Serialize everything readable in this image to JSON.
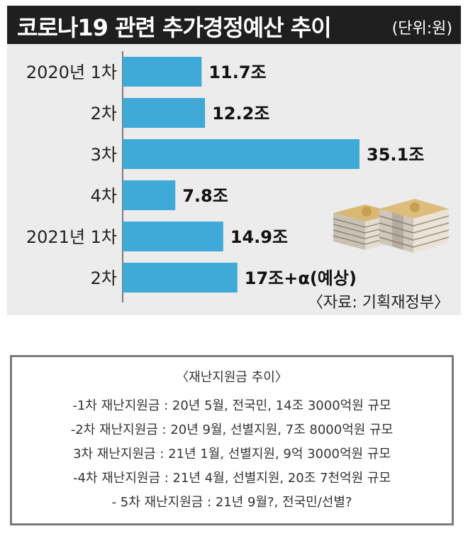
{
  "header": {
    "title": "코로나19 관련 추가경정예산 추이",
    "unit": "(단위:원)"
  },
  "source": "〈자료: 기획재정부〉",
  "colors": {
    "bar": "#3fa9d8",
    "title_bg": "#1f1f1f",
    "panel_bg": "#ececec"
  },
  "chart_data": {
    "type": "bar",
    "orientation": "horizontal",
    "categories": [
      "2020년 1차",
      "2차",
      "3차",
      "4차",
      "2021년 1차",
      "2차"
    ],
    "values": [
      11.7,
      12.2,
      35.1,
      7.8,
      14.9,
      17
    ],
    "value_labels": [
      "11.7조",
      "12.2조",
      "35.1조",
      "7.8조",
      "14.9조",
      "17조+α(예상)"
    ],
    "xlim": [
      0,
      40
    ]
  },
  "note": {
    "title": "〈재난지원금 추이〉",
    "lines": [
      "-1차 재난지원금 : 20년 5월, 전국민, 14조 3000억원 규모",
      "-2차 재난지원금 : 20년 9월, 선별지원, 7조 8000억원 규모",
      "3차 재난지원금 : 21년 1월, 선별지원, 9억 3000억원 규모",
      "-4차 재난지원금 : 21년 4월, 선별지원, 20조 7천억원 규모",
      "- 5차 재난지원금 : 21년 9월?, 전국민/선별?"
    ]
  },
  "icon": "money-stack-icon"
}
